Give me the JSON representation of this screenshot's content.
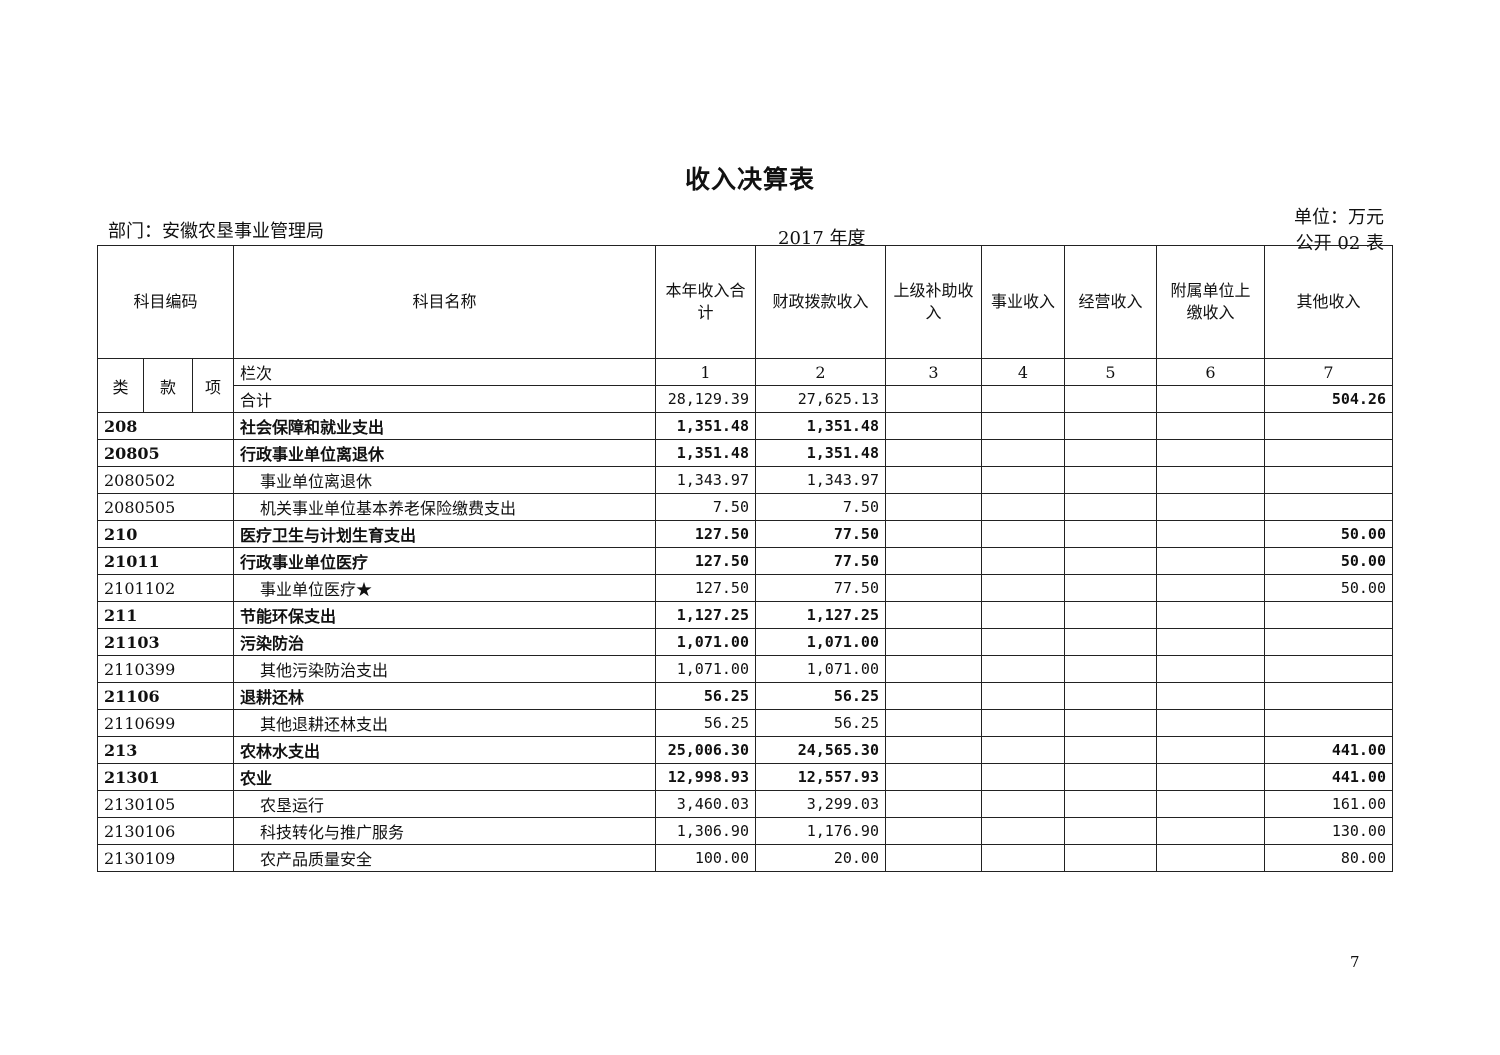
{
  "title": "收入决算表",
  "department": "部门：安徽农垦事业管理局",
  "year": "2017 年度",
  "unit": "单位：万元",
  "form_no": "公开 02 表",
  "headers": {
    "code": "科目编码",
    "name": "科目名称",
    "cols": [
      "本年收入合计",
      "财政拨款收入",
      "上级补助收入",
      "事业收入",
      "经营收入",
      "附属单位上缴收入",
      "其他收入"
    ],
    "lei": "类",
    "kuan": "款",
    "xiang": "项",
    "lanci": "栏次",
    "col_numbers": [
      "1",
      "2",
      "3",
      "4",
      "5",
      "6",
      "7"
    ]
  },
  "total": {
    "name": "合计",
    "values": [
      "28,129.39",
      "27,625.13",
      "",
      "",
      "",
      "",
      "504.26"
    ]
  },
  "rows": [
    {
      "code": "208",
      "name": "社会保障和就业支出",
      "level": 1,
      "values": [
        "1,351.48",
        "1,351.48",
        "",
        "",
        "",
        "",
        ""
      ]
    },
    {
      "code": "20805",
      "name": "行政事业单位离退休",
      "level": 2,
      "values": [
        "1,351.48",
        "1,351.48",
        "",
        "",
        "",
        "",
        ""
      ]
    },
    {
      "code": "2080502",
      "name": "事业单位离退休",
      "level": 3,
      "values": [
        "1,343.97",
        "1,343.97",
        "",
        "",
        "",
        "",
        ""
      ]
    },
    {
      "code": "2080505",
      "name": "机关事业单位基本养老保险缴费支出",
      "level": 3,
      "values": [
        "7.50",
        "7.50",
        "",
        "",
        "",
        "",
        ""
      ]
    },
    {
      "code": "210",
      "name": "医疗卫生与计划生育支出",
      "level": 1,
      "values": [
        "127.50",
        "77.50",
        "",
        "",
        "",
        "",
        "50.00"
      ]
    },
    {
      "code": "21011",
      "name": "行政事业单位医疗",
      "level": 2,
      "values": [
        "127.50",
        "77.50",
        "",
        "",
        "",
        "",
        "50.00"
      ]
    },
    {
      "code": "2101102",
      "name": "事业单位医疗★",
      "level": 3,
      "values": [
        "127.50",
        "77.50",
        "",
        "",
        "",
        "",
        "50.00"
      ]
    },
    {
      "code": "211",
      "name": "节能环保支出",
      "level": 1,
      "values": [
        "1,127.25",
        "1,127.25",
        "",
        "",
        "",
        "",
        ""
      ]
    },
    {
      "code": "21103",
      "name": "污染防治",
      "level": 2,
      "values": [
        "1,071.00",
        "1,071.00",
        "",
        "",
        "",
        "",
        ""
      ]
    },
    {
      "code": "2110399",
      "name": "其他污染防治支出",
      "level": 3,
      "values": [
        "1,071.00",
        "1,071.00",
        "",
        "",
        "",
        "",
        ""
      ]
    },
    {
      "code": "21106",
      "name": "退耕还林",
      "level": 2,
      "values": [
        "56.25",
        "56.25",
        "",
        "",
        "",
        "",
        ""
      ]
    },
    {
      "code": "2110699",
      "name": "其他退耕还林支出",
      "level": 3,
      "values": [
        "56.25",
        "56.25",
        "",
        "",
        "",
        "",
        ""
      ]
    },
    {
      "code": "213",
      "name": "农林水支出",
      "level": 1,
      "values": [
        "25,006.30",
        "24,565.30",
        "",
        "",
        "",
        "",
        "441.00"
      ]
    },
    {
      "code": "21301",
      "name": "农业",
      "level": 2,
      "values": [
        "12,998.93",
        "12,557.93",
        "",
        "",
        "",
        "",
        "441.00"
      ]
    },
    {
      "code": "2130105",
      "name": "农垦运行",
      "level": 3,
      "values": [
        "3,460.03",
        "3,299.03",
        "",
        "",
        "",
        "",
        "161.00"
      ]
    },
    {
      "code": "2130106",
      "name": "科技转化与推广服务",
      "level": 3,
      "values": [
        "1,306.90",
        "1,176.90",
        "",
        "",
        "",
        "",
        "130.00"
      ]
    },
    {
      "code": "2130109",
      "name": "农产品质量安全",
      "level": 3,
      "values": [
        "100.00",
        "20.00",
        "",
        "",
        "",
        "",
        "80.00"
      ]
    }
  ],
  "page_number": "7"
}
